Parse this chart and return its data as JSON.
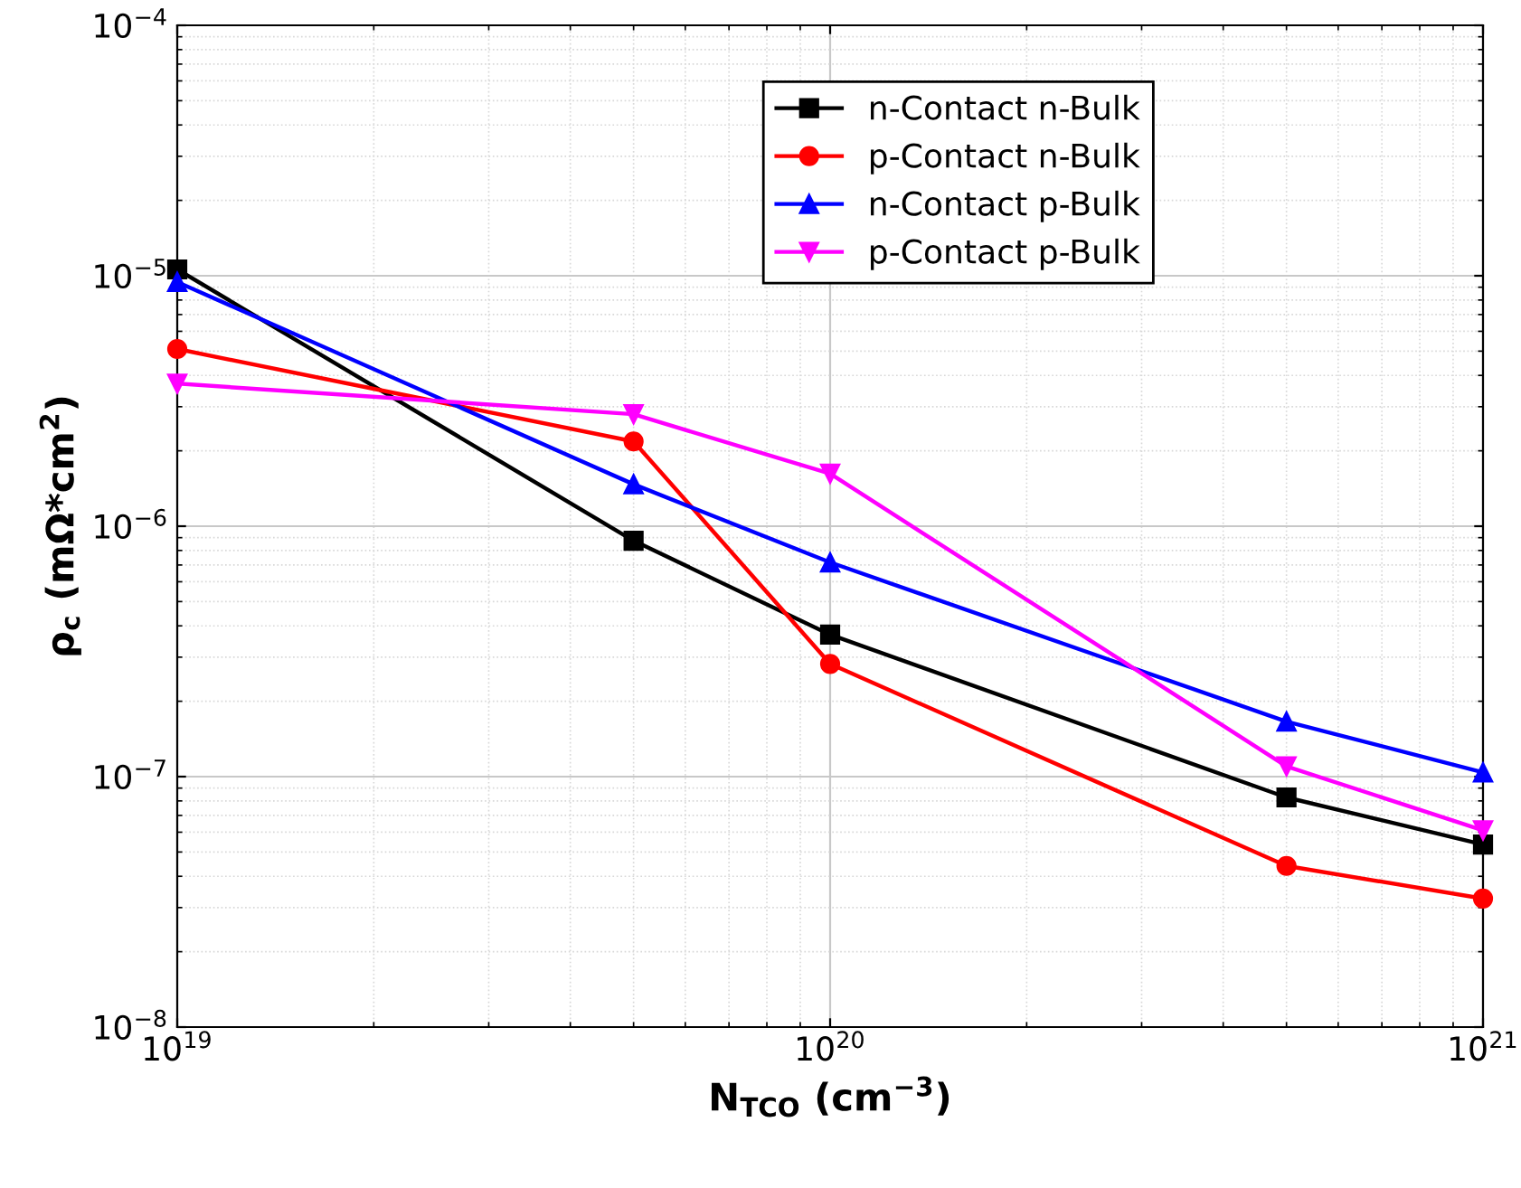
{
  "chart_data": {
    "type": "line",
    "xlabel": "N$_{TCO}$ (cm$^{−3}$)",
    "ylabel": "ρ$_{c}$ (mΩ*cm$^{2}$)",
    "log": "xy",
    "x": [
      1e+19,
      5e+19,
      1e+20,
      5e+20,
      1e+21
    ],
    "xlim": [
      1e+19,
      1e+21
    ],
    "xticks": [
      {
        "value": 1e+19,
        "label": "10$^{19}$"
      },
      {
        "value": 1e+20,
        "label": "10$^{20}$"
      },
      {
        "value": 1e+21,
        "label": "10$^{21}$"
      }
    ],
    "ylim": [
      1e-08,
      0.0001
    ],
    "yticks": [
      {
        "value": 1e-08,
        "label": "10$^{−8}$"
      },
      {
        "value": 1e-07,
        "label": "10$^{−7}$"
      },
      {
        "value": 1e-06,
        "label": "10$^{−6}$"
      },
      {
        "value": 1e-05,
        "label": "10$^{−5}$"
      },
      {
        "value": 0.0001,
        "label": "10$^{−4}$"
      }
    ],
    "grid": true,
    "legend": "top right",
    "line_style": "solid",
    "series": [
      {
        "name": "n-Contact n-Bulk",
        "color": "#000000",
        "marker": "square",
        "values": [
          1.06e-05,
          8.75e-07,
          3.69e-07,
          8.26e-08,
          5.36e-08
        ]
      },
      {
        "name": "p-Contact n-Bulk",
        "color": "#ff0000",
        "marker": "circle",
        "values": [
          5.1e-06,
          2.18e-06,
          2.82e-07,
          4.4e-08,
          3.26e-08
        ]
      },
      {
        "name": "n-Contact p-Bulk",
        "color": "#0000ff",
        "marker": "triangle",
        "values": [
          9.44e-06,
          1.47e-06,
          7.17e-07,
          1.66e-07,
          1.04e-07
        ]
      },
      {
        "name": "p-Contact p-Bulk",
        "color": "#ff00ff",
        "marker": "triangle_down",
        "values": [
          3.71e-06,
          2.8e-06,
          1.62e-06,
          1.1e-07,
          6.1e-08
        ]
      }
    ]
  }
}
